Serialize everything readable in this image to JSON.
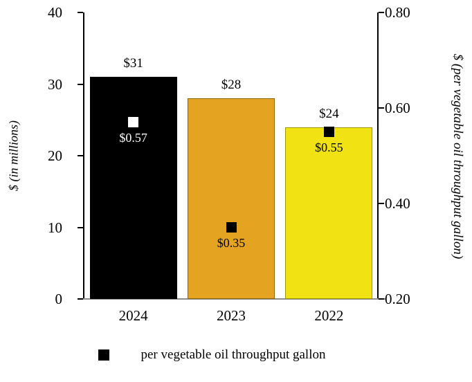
{
  "chart_data": {
    "type": "bar",
    "title": "",
    "categories": [
      "2024",
      "2023",
      "2022"
    ],
    "series": [
      {
        "name": "$ (in millions)",
        "type": "bar",
        "values": [
          31,
          28,
          24
        ],
        "labels": [
          "$31",
          "$28",
          "$24"
        ],
        "bar_colors": [
          "#000000",
          "#E5A322",
          "#F1E214"
        ],
        "bar_border_colors": [
          "#000000",
          "#8A6500",
          "#9A9400"
        ]
      },
      {
        "name": "per vegetable oil throughput gallon",
        "type": "scatter",
        "values": [
          0.57,
          0.35,
          0.55
        ],
        "labels": [
          "$0.57",
          "$0.35",
          "$0.55"
        ],
        "marker_colors": [
          "#FFFFFF",
          "#000000",
          "#000000"
        ],
        "label_colors": [
          "#FFFFFF",
          "#000000",
          "#000000"
        ]
      }
    ],
    "left_axis": {
      "label": "$ (in millions)",
      "ticks": [
        "40",
        "30",
        "20",
        "10",
        "0"
      ],
      "min": 0,
      "max": 40
    },
    "right_axis": {
      "label": "$ (per vegetable oil throughput gallon)",
      "ticks": [
        "0.80",
        "0.60",
        "0.40",
        "0.20"
      ],
      "min": 0.2,
      "max": 0.8
    },
    "legend": {
      "marker": "black-square",
      "label": "per vegetable oil throughput gallon",
      "position": "bottom"
    },
    "grid": false
  }
}
